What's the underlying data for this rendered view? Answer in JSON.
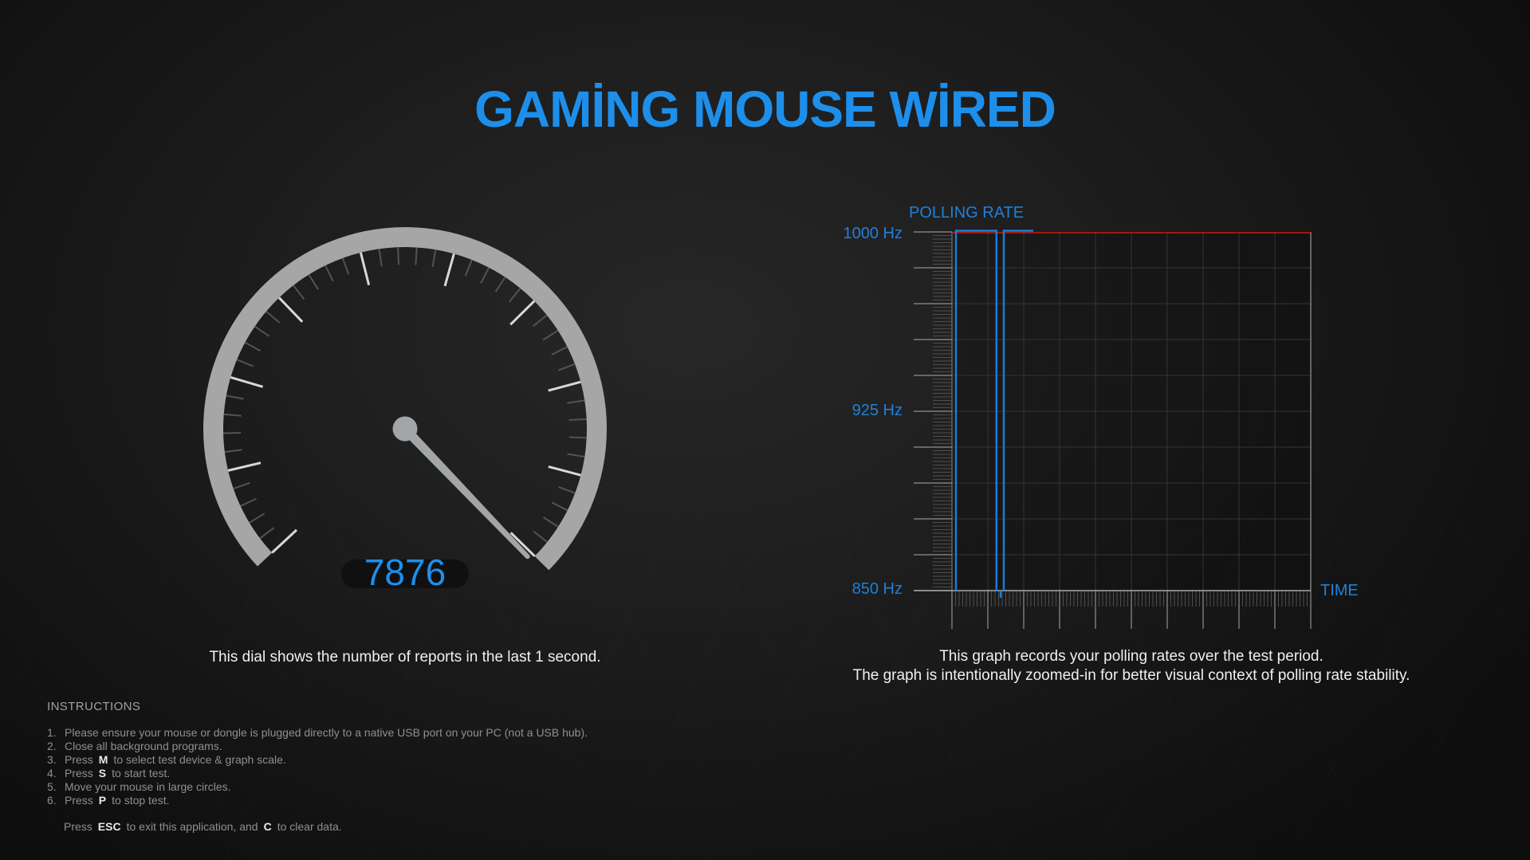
{
  "title": "GAMİNG MOUSE WİRED",
  "colors": {
    "accent_blue": "#1d8feb",
    "label_blue": "#2080d8",
    "trace_blue": "#1480de",
    "reference_red": "#cf1811",
    "gauge_gray": "#a6a6a6"
  },
  "dial": {
    "value": "7876",
    "caption": "This dial shows the number of reports in the last 1 second."
  },
  "graph": {
    "title": "POLLING RATE",
    "y_labels": [
      "1000 Hz",
      "925 Hz",
      "850 Hz"
    ],
    "x_label": "TIME",
    "captions": [
      "This graph records your polling rates over the test period.",
      "The graph is intentionally zoomed-in for better visual context of polling rate stability."
    ]
  },
  "chart_data": {
    "type": "line",
    "title": "POLLING RATE",
    "xlabel": "TIME",
    "ylabel": "Hz",
    "ylim": [
      850,
      1000
    ],
    "y_tick_labels_hz": [
      1000,
      925,
      850
    ],
    "y_major_step_hz": 15,
    "y_minor_step_hz": 1.5,
    "x_major_divisions": 10,
    "x_minor_divisions": 100,
    "grid": true,
    "series": [
      {
        "name": "max-reference",
        "color": "#cf1811",
        "points": [
          [
            0,
            1000
          ],
          [
            1,
            1000
          ]
        ]
      },
      {
        "name": "polling-rate",
        "color": "#1480de",
        "segments": [
          [
            [
              0.0111,
              850
            ],
            [
              0.0111,
              1000
            ],
            [
              0.124,
              1000
            ],
            [
              0.124,
              850
            ]
          ],
          [
            [
              0.1355,
              850
            ],
            [
              0.1355,
              847
            ]
          ],
          [
            [
              0.1444,
              850
            ],
            [
              0.1444,
              1000
            ],
            [
              0.2267,
              1000
            ]
          ]
        ]
      }
    ]
  },
  "gauge": {
    "value_numeric": 7876,
    "needle_angle_deg": 46.2
  },
  "instructions": {
    "header": "INSTRUCTIONS",
    "items": [
      {
        "num": "1.",
        "pre": "Please ensure your mouse or dongle is plugged directly to a native USB port on your PC (not a USB hub).",
        "key": "",
        "post": ""
      },
      {
        "num": "2.",
        "pre": "Close all background programs.",
        "key": "",
        "post": ""
      },
      {
        "num": "3.",
        "pre": "Press",
        "key": "M",
        "post": "to select test device & graph scale."
      },
      {
        "num": "4.",
        "pre": "Press",
        "key": "S",
        "post": "to start test."
      },
      {
        "num": "5.",
        "pre": "Move your mouse in large circles.",
        "key": "",
        "post": ""
      },
      {
        "num": "6.",
        "pre": "Press",
        "key": "P",
        "post": "to stop test."
      }
    ],
    "footer": {
      "pre": "Press",
      "key1": "ESC",
      "mid": "to exit this application, and",
      "key2": "C",
      "post": "to clear data."
    }
  }
}
